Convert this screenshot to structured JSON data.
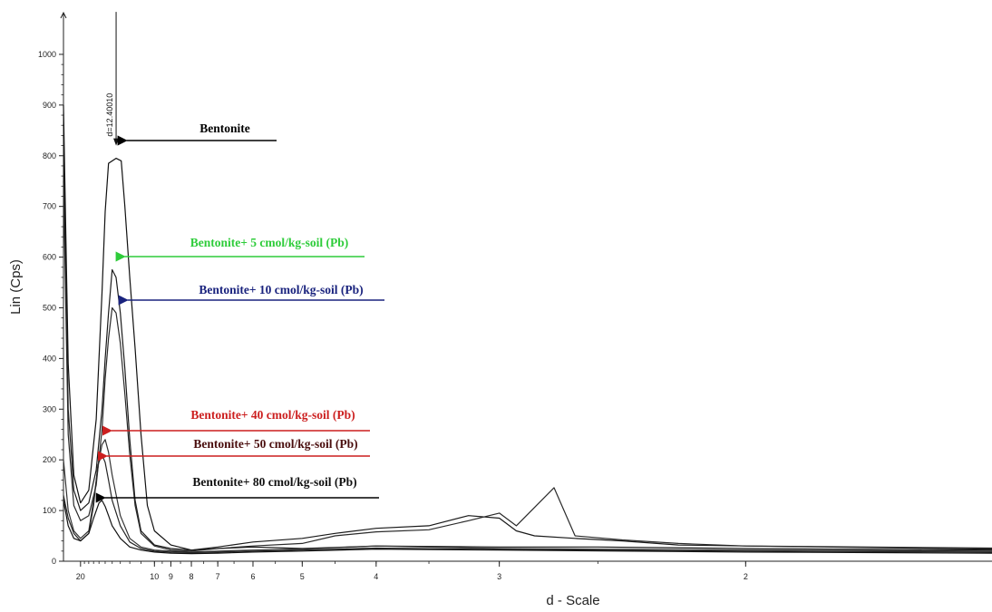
{
  "chart_data": {
    "type": "line",
    "title": "",
    "xlabel": "d - Scale",
    "ylabel": "Lin (Cps)",
    "xscale": "reciprocal (d-spacing, Å)",
    "xlim": [
      26,
      1.5
    ],
    "ylim": [
      0,
      1050
    ],
    "x_ticks": [
      "20",
      "10",
      "9",
      "8",
      "7",
      "6",
      "5",
      "4",
      "3",
      "2"
    ],
    "y_ticks": [
      "0",
      "100",
      "200",
      "300",
      "400",
      "500",
      "600",
      "700",
      "800",
      "900",
      "1000"
    ],
    "grid": false,
    "peak_marker": "d=12.40010",
    "series": [
      {
        "name": "Bentonite",
        "color": "#111111",
        "label_color": "#000000",
        "arrow_color": "#000000",
        "points": [
          [
            26,
            900
          ],
          [
            24,
            390
          ],
          [
            22,
            170
          ],
          [
            20,
            115
          ],
          [
            18,
            140
          ],
          [
            16.5,
            280
          ],
          [
            15.5,
            530
          ],
          [
            15,
            690
          ],
          [
            14.5,
            785
          ],
          [
            13.5,
            795
          ],
          [
            12.9,
            790
          ],
          [
            12.5,
            700
          ],
          [
            12,
            560
          ],
          [
            11.5,
            420
          ],
          [
            11,
            250
          ],
          [
            10.5,
            110
          ],
          [
            10,
            60
          ],
          [
            9,
            32
          ],
          [
            8,
            22
          ],
          [
            7,
            25
          ],
          [
            6,
            28
          ],
          [
            5,
            25
          ],
          [
            4,
            30
          ],
          [
            3,
            28
          ],
          [
            2.5,
            28
          ],
          [
            2,
            25
          ],
          [
            1.5,
            22
          ]
        ]
      },
      {
        "name": "Bentonite+ 5 cmol/kg-soil (Pb)",
        "color": "#1a1a1a",
        "label_color": "#2ecc3a",
        "arrow_color": "#2ecc3a",
        "points": [
          [
            26,
            840
          ],
          [
            24,
            300
          ],
          [
            22,
            140
          ],
          [
            20,
            100
          ],
          [
            18,
            115
          ],
          [
            16.5,
            180
          ],
          [
            15.5,
            300
          ],
          [
            15,
            400
          ],
          [
            14.5,
            490
          ],
          [
            14,
            575
          ],
          [
            13.5,
            560
          ],
          [
            13,
            490
          ],
          [
            12.5,
            380
          ],
          [
            12,
            240
          ],
          [
            11.5,
            120
          ],
          [
            11,
            60
          ],
          [
            10,
            32
          ],
          [
            9,
            25
          ],
          [
            8,
            22
          ],
          [
            7,
            28
          ],
          [
            6,
            38
          ],
          [
            5,
            45
          ],
          [
            4.5,
            55
          ],
          [
            4,
            65
          ],
          [
            3.5,
            70
          ],
          [
            3.2,
            90
          ],
          [
            3,
            85
          ],
          [
            2.9,
            60
          ],
          [
            2.8,
            50
          ],
          [
            2.6,
            45
          ],
          [
            2.4,
            40
          ],
          [
            2.2,
            32
          ],
          [
            2,
            30
          ],
          [
            1.5,
            24
          ]
        ]
      },
      {
        "name": "Bentonite+ 10 cmol/kg-soil (Pb)",
        "color": "#2a2a2a",
        "label_color": "#1a237e",
        "arrow_color": "#1a237e",
        "points": [
          [
            26,
            750
          ],
          [
            24,
            250
          ],
          [
            22,
            110
          ],
          [
            20,
            80
          ],
          [
            18,
            90
          ],
          [
            16.5,
            150
          ],
          [
            15.5,
            260
          ],
          [
            15,
            360
          ],
          [
            14.5,
            440
          ],
          [
            14,
            500
          ],
          [
            13.5,
            490
          ],
          [
            13,
            430
          ],
          [
            12.5,
            330
          ],
          [
            12,
            210
          ],
          [
            11.5,
            110
          ],
          [
            11,
            55
          ],
          [
            10,
            30
          ],
          [
            9,
            22
          ],
          [
            8,
            20
          ],
          [
            7,
            25
          ],
          [
            6,
            30
          ],
          [
            5,
            35
          ],
          [
            4.5,
            50
          ],
          [
            4,
            58
          ],
          [
            3.5,
            62
          ],
          [
            3.2,
            80
          ],
          [
            3,
            95
          ],
          [
            2.9,
            70
          ],
          [
            2.7,
            145
          ],
          [
            2.6,
            50
          ],
          [
            2.4,
            42
          ],
          [
            2.2,
            35
          ],
          [
            2,
            30
          ],
          [
            1.5,
            26
          ]
        ]
      },
      {
        "name": "Bentonite+ 40 cmol/kg-soil (Pb)",
        "color": "#333333",
        "label_color": "#cc1f1f",
        "arrow_color": "#cc1f1f",
        "points": [
          [
            26,
            200
          ],
          [
            24,
            100
          ],
          [
            22,
            60
          ],
          [
            20,
            45
          ],
          [
            18,
            60
          ],
          [
            17,
            120
          ],
          [
            16,
            200
          ],
          [
            15.5,
            230
          ],
          [
            15,
            240
          ],
          [
            14.5,
            215
          ],
          [
            14,
            170
          ],
          [
            13,
            90
          ],
          [
            12,
            45
          ],
          [
            11,
            28
          ],
          [
            10,
            22
          ],
          [
            9,
            20
          ],
          [
            8,
            18
          ],
          [
            7,
            20
          ],
          [
            6,
            22
          ],
          [
            5,
            24
          ],
          [
            4,
            30
          ],
          [
            3,
            25
          ],
          [
            2,
            22
          ],
          [
            1.5,
            20
          ]
        ]
      },
      {
        "name": "Bentonite+ 50 cmol/kg-soil (Pb)",
        "color": "#262626",
        "label_color": "#4a0e0e",
        "arrow_color": "#cc1f1f",
        "points": [
          [
            26,
            130
          ],
          [
            24,
            85
          ],
          [
            22,
            55
          ],
          [
            20,
            40
          ],
          [
            18,
            55
          ],
          [
            17,
            110
          ],
          [
            16.2,
            190
          ],
          [
            15.5,
            210
          ],
          [
            15,
            195
          ],
          [
            14.5,
            160
          ],
          [
            14,
            120
          ],
          [
            13,
            70
          ],
          [
            12,
            38
          ],
          [
            11,
            25
          ],
          [
            10,
            20
          ],
          [
            9,
            18
          ],
          [
            8,
            17
          ],
          [
            7,
            18
          ],
          [
            6,
            20
          ],
          [
            5,
            22
          ],
          [
            4,
            26
          ],
          [
            3,
            23
          ],
          [
            2,
            20
          ],
          [
            1.5,
            18
          ]
        ]
      },
      {
        "name": "Bentonite+ 80 cmol/kg-soil (Pb)",
        "color": "#111111",
        "label_color": "#111111",
        "arrow_color": "#000000",
        "points": [
          [
            26,
            120
          ],
          [
            24,
            70
          ],
          [
            22,
            45
          ],
          [
            20,
            40
          ],
          [
            18,
            55
          ],
          [
            17,
            85
          ],
          [
            16,
            115
          ],
          [
            15.5,
            120
          ],
          [
            15,
            108
          ],
          [
            14.5,
            90
          ],
          [
            14,
            70
          ],
          [
            13,
            45
          ],
          [
            12,
            28
          ],
          [
            11,
            22
          ],
          [
            10,
            18
          ],
          [
            9,
            16
          ],
          [
            8,
            15
          ],
          [
            7,
            16
          ],
          [
            6,
            18
          ],
          [
            5,
            20
          ],
          [
            4,
            24
          ],
          [
            3,
            22
          ],
          [
            2,
            18
          ],
          [
            1.5,
            16
          ]
        ]
      }
    ]
  }
}
